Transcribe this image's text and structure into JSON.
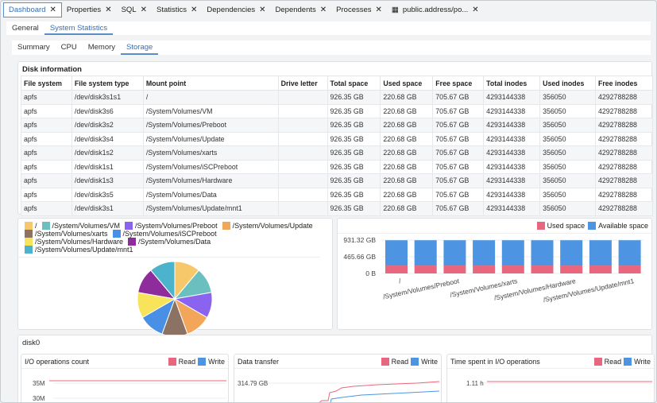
{
  "tabs": [
    {
      "label": "Dashboard",
      "active": true
    },
    {
      "label": "Properties"
    },
    {
      "label": "SQL"
    },
    {
      "label": "Statistics"
    },
    {
      "label": "Dependencies"
    },
    {
      "label": "Dependents"
    },
    {
      "label": "Processes"
    },
    {
      "label": "public.address/po...",
      "icon": "table-icon"
    }
  ],
  "subtabs": [
    "General",
    "System Statistics"
  ],
  "subtabs2": [
    "Summary",
    "CPU",
    "Memory",
    "Storage"
  ],
  "disk_info": {
    "title": "Disk information",
    "columns": [
      "File system",
      "File system type",
      "Mount point",
      "Drive letter",
      "Total space",
      "Used space",
      "Free space",
      "Total inodes",
      "Used inodes",
      "Free inodes"
    ],
    "rows": [
      [
        "apfs",
        "/dev/disk3s1s1",
        "/",
        "",
        "926.35 GB",
        "220.68 GB",
        "705.67 GB",
        "4293144338",
        "356050",
        "4292788288"
      ],
      [
        "apfs",
        "/dev/disk3s6",
        "/System/Volumes/VM",
        "",
        "926.35 GB",
        "220.68 GB",
        "705.67 GB",
        "4293144338",
        "356050",
        "4292788288"
      ],
      [
        "apfs",
        "/dev/disk3s2",
        "/System/Volumes/Preboot",
        "",
        "926.35 GB",
        "220.68 GB",
        "705.67 GB",
        "4293144338",
        "356050",
        "4292788288"
      ],
      [
        "apfs",
        "/dev/disk3s4",
        "/System/Volumes/Update",
        "",
        "926.35 GB",
        "220.68 GB",
        "705.67 GB",
        "4293144338",
        "356050",
        "4292788288"
      ],
      [
        "apfs",
        "/dev/disk1s2",
        "/System/Volumes/xarts",
        "",
        "926.35 GB",
        "220.68 GB",
        "705.67 GB",
        "4293144338",
        "356050",
        "4292788288"
      ],
      [
        "apfs",
        "/dev/disk1s1",
        "/System/Volumes/iSCPreboot",
        "",
        "926.35 GB",
        "220.68 GB",
        "705.67 GB",
        "4293144338",
        "356050",
        "4292788288"
      ],
      [
        "apfs",
        "/dev/disk1s3",
        "/System/Volumes/Hardware",
        "",
        "926.35 GB",
        "220.68 GB",
        "705.67 GB",
        "4293144338",
        "356050",
        "4292788288"
      ],
      [
        "apfs",
        "/dev/disk3s5",
        "/System/Volumes/Data",
        "",
        "926.35 GB",
        "220.68 GB",
        "705.67 GB",
        "4293144338",
        "356050",
        "4292788288"
      ],
      [
        "apfs",
        "/dev/disk3s1",
        "/System/Volumes/Update/mnt1",
        "",
        "926.35 GB",
        "220.68 GB",
        "705.67 GB",
        "4293144338",
        "356050",
        "4292788288"
      ]
    ]
  },
  "chart_data": [
    {
      "type": "pie",
      "legend_position": "top",
      "labels": [
        "/",
        "/System/Volumes/VM",
        "/System/Volumes/Preboot",
        "/System/Volumes/Update",
        "/System/Volumes/xarts",
        "/System/Volumes/iSCPreboot",
        "/System/Volumes/Hardware",
        "/System/Volumes/Data",
        "/System/Volumes/Update/mnt1"
      ],
      "values": [
        926.35,
        926.35,
        926.35,
        926.35,
        926.35,
        926.35,
        926.35,
        926.35,
        926.35
      ],
      "colors": [
        "#f6c86a",
        "#6cbfbf",
        "#8a63ee",
        "#f2a65a",
        "#8b7262",
        "#4a8fe6",
        "#f8e45a",
        "#8e2c9c",
        "#4cb3cc"
      ]
    },
    {
      "type": "bar",
      "stacked": true,
      "legend_position": "top-right",
      "categories": [
        "/",
        "/System/Volumes/VM",
        "/System/Volumes/Preboot",
        "/System/Volumes/Update",
        "/System/Volumes/xarts",
        "/System/Volumes/iSCPreboot",
        "/System/Volumes/Hardware",
        "/System/Volumes/Data",
        "/System/Volumes/Update/mnt1"
      ],
      "shown_category_labels": [
        "/",
        "/System/Volumes/Preboot",
        "/System/Volumes/xarts",
        "/System/Volumes/Hardware",
        "/System/Volumes/Update/mnt1"
      ],
      "series": [
        {
          "name": "Used space",
          "color": "#e8677f",
          "values": [
            220.68,
            220.68,
            220.68,
            220.68,
            220.68,
            220.68,
            220.68,
            220.68,
            220.68
          ]
        },
        {
          "name": "Available space",
          "color": "#4d95e2",
          "values": [
            705.67,
            705.67,
            705.67,
            705.67,
            705.67,
            705.67,
            705.67,
            705.67,
            705.67
          ]
        }
      ],
      "yticks": [
        "0 B",
        "465.66 GB",
        "931.32 GB"
      ],
      "ylim": [
        0,
        931.32
      ],
      "unit": "GB"
    }
  ],
  "disk0": {
    "title": "disk0",
    "cards": [
      {
        "title": "I/O operations count",
        "legend": [
          "Read",
          "Write"
        ],
        "yticks": [
          "35M",
          "30M"
        ]
      },
      {
        "title": "Data transfer",
        "legend": [
          "Read",
          "Write"
        ],
        "yticks": [
          "314.79 GB"
        ]
      },
      {
        "title": "Time spent in I/O operations",
        "legend": [
          "Read",
          "Write"
        ],
        "yticks": [
          "1.11 h"
        ]
      }
    ]
  }
}
